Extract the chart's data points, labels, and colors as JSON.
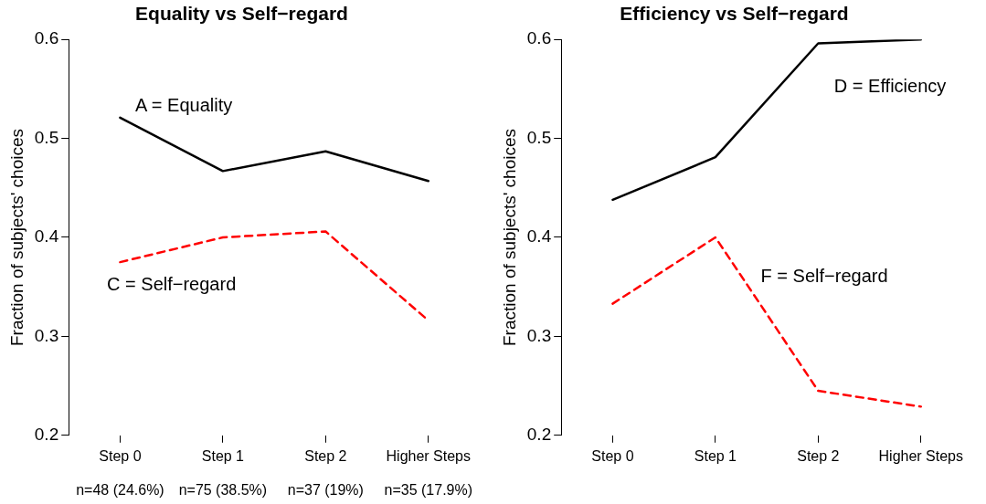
{
  "chart_data": [
    {
      "type": "line",
      "title": "Equality vs Self−regard",
      "ylabel": "Fraction of subjects' choices",
      "categories": [
        "Step 0",
        "Step 1",
        "Step 2",
        "Higher Steps"
      ],
      "ylim": [
        0.2,
        0.6
      ],
      "yticks": [
        0.2,
        0.3,
        0.4,
        0.5,
        0.6
      ],
      "grid": false,
      "legend": false,
      "marker": "none",
      "series": [
        {
          "name": "A = Equality",
          "color": "#000000",
          "line_style": "solid",
          "values": [
            0.521,
            0.467,
            0.487,
            0.457
          ]
        },
        {
          "name": "C = Self−regard",
          "color": "#ff0000",
          "line_style": "dashed",
          "values": [
            0.375,
            0.4,
            0.406,
            0.316
          ]
        }
      ],
      "annotations": [
        "n=48 (24.6%)",
        "n=75 (38.5%)",
        "n=37 (19%)",
        "n=35 (17.9%)"
      ]
    },
    {
      "type": "line",
      "title": "Efficiency vs Self−regard",
      "ylabel": "Fraction of subjects' choices",
      "categories": [
        "Step 0",
        "Step 1",
        "Step 2",
        "Higher Steps"
      ],
      "ylim": [
        0.2,
        0.6
      ],
      "yticks": [
        0.2,
        0.3,
        0.4,
        0.5,
        0.6
      ],
      "grid": false,
      "legend": false,
      "marker": "none",
      "series": [
        {
          "name": "D = Efficiency",
          "color": "#000000",
          "line_style": "solid",
          "values": [
            0.438,
            0.481,
            0.596,
            0.6
          ]
        },
        {
          "name": "F = Self−regard",
          "color": "#ff0000",
          "line_style": "dashed",
          "values": [
            0.333,
            0.4,
            0.245,
            0.229
          ]
        }
      ]
    }
  ]
}
